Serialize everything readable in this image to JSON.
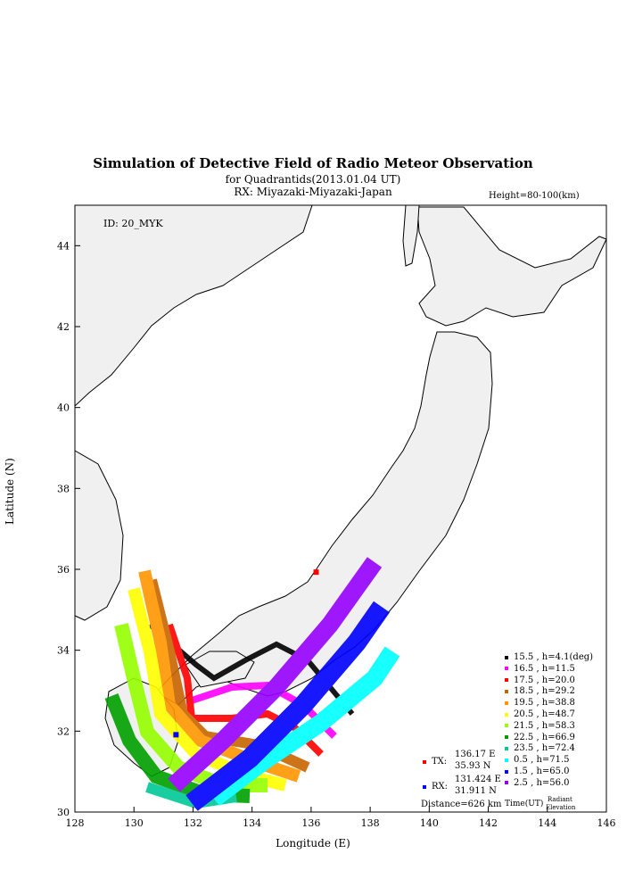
{
  "title": "Simulation of Detective Field of Radio Meteor Observation",
  "subtitle": "for Quadrantids(2013.01.04 UT)",
  "rx_location": "RX: Miyazaki-Miyazaki-Japan",
  "height_range": "Height=80-100(km)",
  "station_id": "ID: 20_MYK",
  "x_axis": {
    "label": "Longitude (E)",
    "ticks": [
      "128",
      "130",
      "132",
      "134",
      "136",
      "138",
      "140",
      "142",
      "144",
      "146"
    ],
    "min": 128,
    "max": 146
  },
  "y_axis": {
    "label": "Latitude (N)",
    "ticks": [
      "30",
      "32",
      "34",
      "36",
      "38",
      "40",
      "42",
      "44"
    ],
    "min": 30,
    "max": 45
  },
  "tx": {
    "label": "TX:",
    "lon": "136.17 E",
    "lat": "35.93 N",
    "lon_val": 136.17,
    "lat_val": 35.93,
    "color": "#ff0000"
  },
  "rx": {
    "label": "RX:",
    "lon": "131.424 E",
    "lat": "31.911 N",
    "lon_val": 131.424,
    "lat_val": 31.911,
    "color": "#0000ff"
  },
  "distance": "Distance=626 km",
  "legend_footer": {
    "time": "Time(UT)",
    "radiant": "Radiant",
    "elevation": "Elevation"
  },
  "legend": [
    {
      "time": "15.5",
      "elev": "h=4.1(deg)",
      "color": "#000000"
    },
    {
      "time": "16.5",
      "elev": "h=11.5",
      "color": "#ff00ff"
    },
    {
      "time": "17.5",
      "elev": "h=20.0",
      "color": "#ff0000"
    },
    {
      "time": "18.5",
      "elev": "h=29.2",
      "color": "#c86400"
    },
    {
      "time": "19.5",
      "elev": "h=38.8",
      "color": "#ff9600"
    },
    {
      "time": "20.5",
      "elev": "h=48.7",
      "color": "#ffff00"
    },
    {
      "time": "21.5",
      "elev": "h=58.3",
      "color": "#96ff00"
    },
    {
      "time": "22.5",
      "elev": "h=66.9",
      "color": "#00a000"
    },
    {
      "time": "23.5",
      "elev": "h=72.4",
      "color": "#00c896"
    },
    {
      "time": "0.5",
      "elev": "h=71.5",
      "color": "#00ffff"
    },
    {
      "time": "1.5",
      "elev": "h=65.0",
      "color": "#0000ff"
    },
    {
      "time": "2.5",
      "elev": "h=56.0",
      "color": "#9600ff"
    }
  ]
}
